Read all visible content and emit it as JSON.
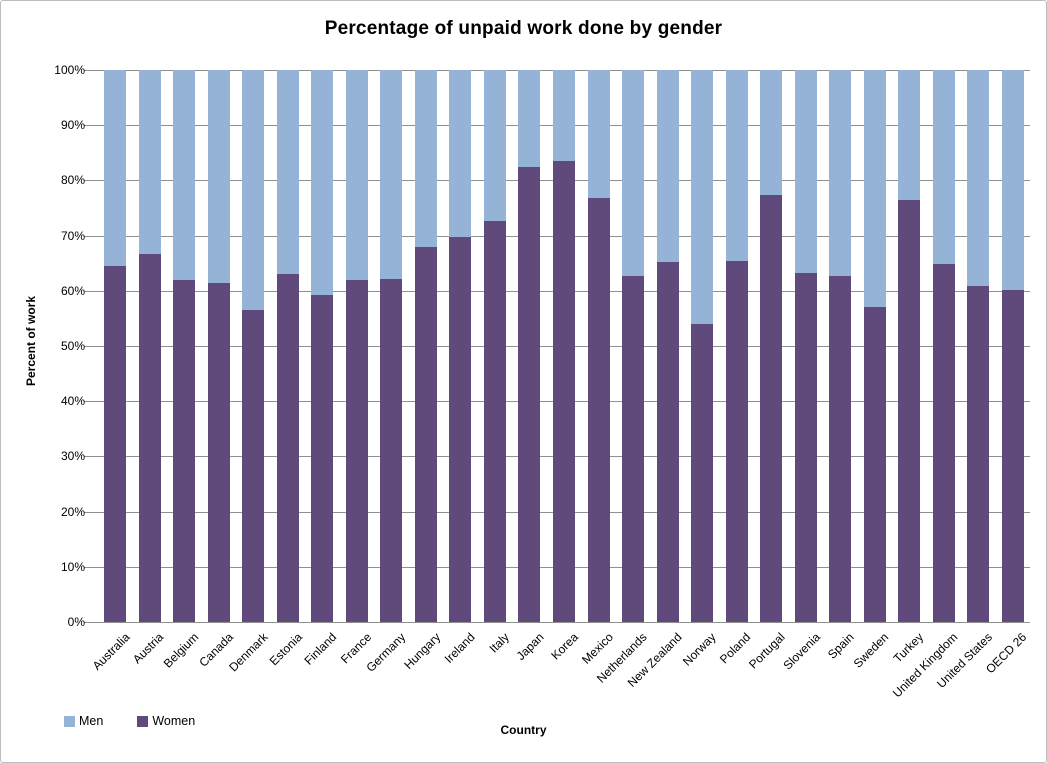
{
  "chart_data": {
    "type": "bar",
    "stacked": true,
    "stack_total": 100,
    "title": "Percentage of unpaid work done by gender",
    "xlabel": "Country",
    "ylabel": "Percent of work",
    "ylim": [
      0,
      100
    ],
    "ytick_step": 10,
    "ytick_labels": [
      "0%",
      "10%",
      "20%",
      "30%",
      "40%",
      "50%",
      "60%",
      "70%",
      "80%",
      "90%",
      "100%"
    ],
    "grid": true,
    "legend_position": "bottom-left",
    "categories": [
      "Australia",
      "Austria",
      "Belgium",
      "Canada",
      "Denmark",
      "Estonia",
      "Finland",
      "France",
      "Germany",
      "Hungary",
      "Ireland",
      "Italy",
      "Japan",
      "Korea",
      "Mexico",
      "Netherlands",
      "New Zealand",
      "Norway",
      "Poland",
      "Portugal",
      "Slovenia",
      "Spain",
      "Sweden",
      "Turkey",
      "United Kingdom",
      "United States",
      "OECD 26"
    ],
    "series": [
      {
        "name": "Men",
        "color": "#95B3D7",
        "values": [
          35.5,
          33.4,
          38.0,
          38.6,
          43.5,
          37.0,
          40.7,
          38.1,
          37.9,
          32.0,
          30.2,
          27.4,
          17.5,
          16.5,
          23.2,
          37.3,
          34.8,
          46.1,
          34.6,
          22.7,
          36.8,
          37.3,
          42.9,
          23.6,
          35.1,
          39.1,
          39.9
        ]
      },
      {
        "name": "Women",
        "color": "#604A7B",
        "values": [
          64.5,
          66.6,
          62.0,
          61.4,
          56.5,
          63.0,
          59.3,
          61.9,
          62.1,
          68.0,
          69.8,
          72.6,
          82.5,
          83.5,
          76.8,
          62.7,
          65.2,
          53.9,
          65.4,
          77.3,
          63.2,
          62.7,
          57.1,
          76.4,
          64.9,
          60.9,
          60.1
        ]
      }
    ],
    "stack_order_bottom_to_top": [
      "Women",
      "Men"
    ]
  }
}
